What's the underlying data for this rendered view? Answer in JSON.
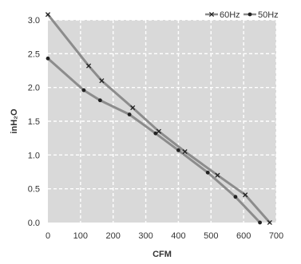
{
  "chart_data": {
    "type": "line",
    "xlabel": "CFM",
    "ylabel": "inH₂O",
    "xlim": [
      0,
      700
    ],
    "ylim": [
      0,
      3.0
    ],
    "x_ticks": [
      0,
      100,
      200,
      300,
      400,
      500,
      600,
      700
    ],
    "y_ticks": [
      0.0,
      0.5,
      1.0,
      1.5,
      2.0,
      2.5,
      3.0
    ],
    "x_tick_labels": [
      "0",
      "100",
      "200",
      "300",
      "400",
      "500",
      "600",
      "700"
    ],
    "y_tick_labels": [
      "0.0",
      "0.5",
      "1.0",
      "1.5",
      "2.0",
      "2.5",
      "3.0"
    ],
    "grid": true,
    "legend_position": "top-right",
    "colors": {
      "plot_background": "#d9d9d9",
      "grid": "#ffffff",
      "line": "#8c8c8c",
      "marker": "#222222"
    },
    "series": [
      {
        "name": "60Hz",
        "marker": "x",
        "x": [
          0,
          125,
          165,
          260,
          340,
          420,
          520,
          605,
          680
        ],
        "y": [
          3.08,
          2.32,
          2.1,
          1.7,
          1.35,
          1.05,
          0.7,
          0.41,
          0.0
        ]
      },
      {
        "name": "50Hz",
        "marker": "dot",
        "x": [
          0,
          110,
          160,
          250,
          330,
          400,
          490,
          575,
          650
        ],
        "y": [
          2.43,
          1.96,
          1.81,
          1.6,
          1.32,
          1.07,
          0.74,
          0.38,
          0.0
        ]
      }
    ]
  }
}
